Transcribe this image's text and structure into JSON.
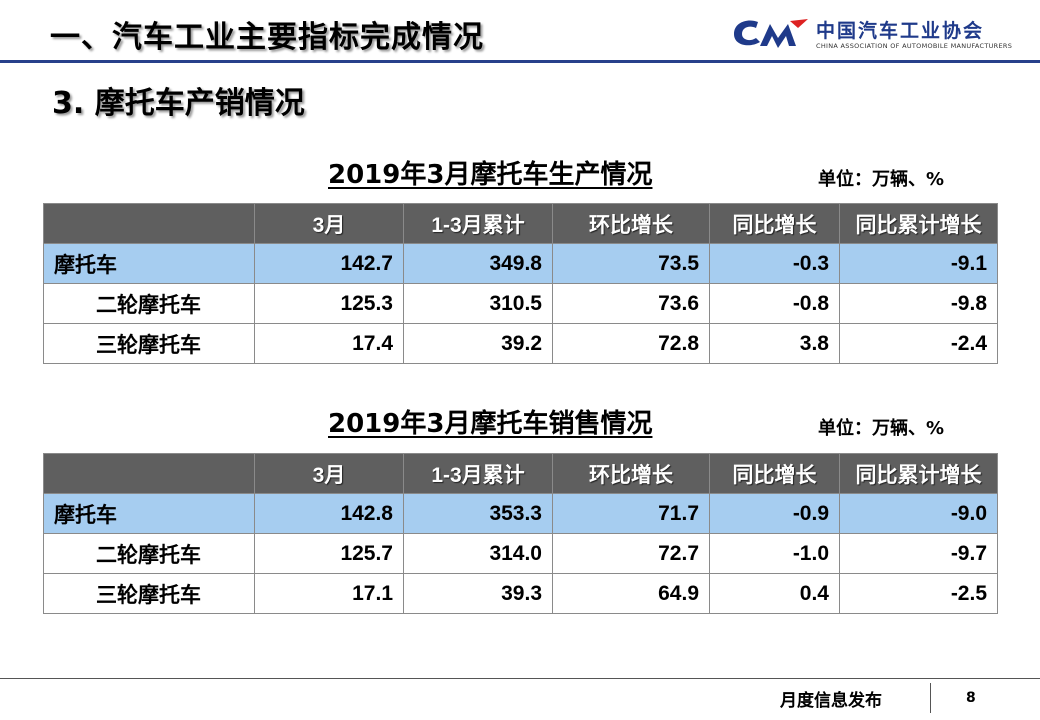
{
  "header": {
    "title": "一、汽车工业主要指标完成情况",
    "logo_cn": "中国汽车工业协会",
    "logo_en": "CHINA ASSOCIATION OF AUTOMOBILE MANUFACTURERS",
    "rule_color": "#27408b"
  },
  "subheading": "3. 摩托车产销情况",
  "columns": [
    "",
    "3月",
    "1-3月累计",
    "环比增长",
    "同比增长",
    "同比累计增长"
  ],
  "production": {
    "title": "2019年3月摩托车生产情况",
    "unit": "单位：万辆、%",
    "rows": [
      {
        "label": "摩托车",
        "values": [
          "142.7",
          "349.8",
          "73.5",
          "-0.3",
          "-9.1"
        ]
      },
      {
        "label": "二轮摩托车",
        "values": [
          "125.3",
          "310.5",
          "73.6",
          "-0.8",
          "-9.8"
        ]
      },
      {
        "label": "三轮摩托车",
        "values": [
          "17.4",
          "39.2",
          "72.8",
          "3.8",
          "-2.4"
        ]
      }
    ]
  },
  "sales": {
    "title": "2019年3月摩托车销售情况",
    "unit": "单位：万辆、%",
    "rows": [
      {
        "label": "摩托车",
        "values": [
          "142.8",
          "353.3",
          "71.7",
          "-0.9",
          "-9.0"
        ]
      },
      {
        "label": "二轮摩托车",
        "values": [
          "125.7",
          "314.0",
          "72.7",
          "-1.0",
          "-9.7"
        ]
      },
      {
        "label": "三轮摩托车",
        "values": [
          "17.1",
          "39.3",
          "64.9",
          "0.4",
          "-2.5"
        ]
      }
    ]
  },
  "colors": {
    "header_bg": "#5f5f5f",
    "highlight_row": "#a6cdf0",
    "logo_blue": "#1f3a8a"
  },
  "footer": {
    "label": "月度信息发布",
    "page": "8"
  }
}
